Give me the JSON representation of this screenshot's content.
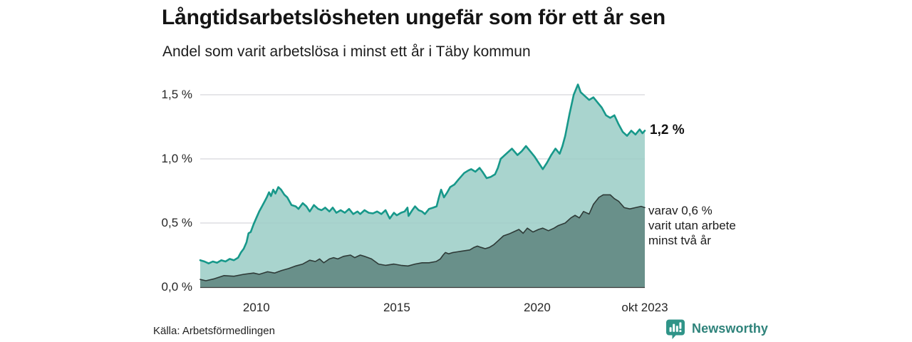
{
  "header": {
    "title": "Långtidsarbetslösheten ungefär som för ett år sen",
    "subtitle": "Andel som varit arbetslösa i minst ett år i Täby kommun"
  },
  "annotations": {
    "end_value_primary": "1,2 %",
    "secondary_lines": [
      "varav 0,6 %",
      "varit utan arbete",
      "minst två år"
    ]
  },
  "footer": {
    "source": "Källa: Arbetsförmedlingen",
    "brand": "Newsworthy"
  },
  "colors": {
    "primary_line": "#17988a",
    "primary_fill": "rgba(154,205,198,0.85)",
    "secondary_line": "#2e3a37",
    "secondary_fill": "rgba(100,138,132,0.92)",
    "gridline": "#d7d7dc",
    "axis_line": "#3c3c3c",
    "brand_teal": "#2f9488"
  },
  "chart_data": {
    "type": "area",
    "title": "Långtidsarbetslösheten ungefär som för ett år sen",
    "subtitle": "Andel som varit arbetslösa i minst ett år i Täby kommun",
    "unit": "percent",
    "grid": true,
    "x_axis": {
      "range": [
        2008.0,
        2023.833
      ],
      "ticks": [
        {
          "label": "2010",
          "t": 2010
        },
        {
          "label": "2015",
          "t": 2015
        },
        {
          "label": "2020",
          "t": 2020
        },
        {
          "label": "okt 2023",
          "t": 2023.833
        }
      ]
    },
    "y_axis": {
      "range": [
        0,
        1.6
      ],
      "ticks": [
        {
          "label": "0,0 %",
          "v": 0.0
        },
        {
          "label": "0,5 %",
          "v": 0.5
        },
        {
          "label": "1,0 %",
          "v": 1.0
        },
        {
          "label": "1,5 %",
          "v": 1.5
        }
      ]
    },
    "series": [
      {
        "name": "Andel arbetslösa minst ett år",
        "end_value": "1,2 %",
        "points": [
          [
            2008.0,
            0.21
          ],
          [
            2008.15,
            0.2
          ],
          [
            2008.3,
            0.185
          ],
          [
            2008.45,
            0.2
          ],
          [
            2008.6,
            0.19
          ],
          [
            2008.75,
            0.21
          ],
          [
            2008.9,
            0.2
          ],
          [
            2009.05,
            0.22
          ],
          [
            2009.2,
            0.21
          ],
          [
            2009.35,
            0.23
          ],
          [
            2009.45,
            0.27
          ],
          [
            2009.55,
            0.3
          ],
          [
            2009.65,
            0.35
          ],
          [
            2009.72,
            0.42
          ],
          [
            2009.8,
            0.43
          ],
          [
            2009.9,
            0.49
          ],
          [
            2010.0,
            0.54
          ],
          [
            2010.1,
            0.59
          ],
          [
            2010.2,
            0.63
          ],
          [
            2010.3,
            0.67
          ],
          [
            2010.37,
            0.7
          ],
          [
            2010.45,
            0.74
          ],
          [
            2010.52,
            0.71
          ],
          [
            2010.6,
            0.76
          ],
          [
            2010.68,
            0.73
          ],
          [
            2010.78,
            0.78
          ],
          [
            2010.88,
            0.76
          ],
          [
            2011.0,
            0.72
          ],
          [
            2011.1,
            0.7
          ],
          [
            2011.25,
            0.64
          ],
          [
            2011.4,
            0.63
          ],
          [
            2011.5,
            0.61
          ],
          [
            2011.65,
            0.655
          ],
          [
            2011.78,
            0.63
          ],
          [
            2011.9,
            0.59
          ],
          [
            2012.05,
            0.64
          ],
          [
            2012.2,
            0.61
          ],
          [
            2012.32,
            0.6
          ],
          [
            2012.45,
            0.62
          ],
          [
            2012.6,
            0.59
          ],
          [
            2012.72,
            0.62
          ],
          [
            2012.85,
            0.58
          ],
          [
            2013.0,
            0.6
          ],
          [
            2013.15,
            0.58
          ],
          [
            2013.3,
            0.61
          ],
          [
            2013.45,
            0.57
          ],
          [
            2013.6,
            0.59
          ],
          [
            2013.7,
            0.57
          ],
          [
            2013.85,
            0.6
          ],
          [
            2014.0,
            0.58
          ],
          [
            2014.15,
            0.575
          ],
          [
            2014.3,
            0.59
          ],
          [
            2014.45,
            0.57
          ],
          [
            2014.6,
            0.6
          ],
          [
            2014.75,
            0.535
          ],
          [
            2014.9,
            0.58
          ],
          [
            2015.0,
            0.56
          ],
          [
            2015.15,
            0.58
          ],
          [
            2015.28,
            0.59
          ],
          [
            2015.38,
            0.62
          ],
          [
            2015.42,
            0.555
          ],
          [
            2015.55,
            0.6
          ],
          [
            2015.65,
            0.63
          ],
          [
            2015.78,
            0.6
          ],
          [
            2015.9,
            0.59
          ],
          [
            2016.0,
            0.57
          ],
          [
            2016.15,
            0.61
          ],
          [
            2016.3,
            0.62
          ],
          [
            2016.42,
            0.63
          ],
          [
            2016.5,
            0.7
          ],
          [
            2016.58,
            0.76
          ],
          [
            2016.68,
            0.7
          ],
          [
            2016.8,
            0.74
          ],
          [
            2016.9,
            0.78
          ],
          [
            2017.05,
            0.8
          ],
          [
            2017.2,
            0.84
          ],
          [
            2017.4,
            0.89
          ],
          [
            2017.55,
            0.91
          ],
          [
            2017.65,
            0.92
          ],
          [
            2017.8,
            0.9
          ],
          [
            2017.95,
            0.93
          ],
          [
            2018.05,
            0.9
          ],
          [
            2018.2,
            0.85
          ],
          [
            2018.35,
            0.86
          ],
          [
            2018.5,
            0.88
          ],
          [
            2018.6,
            0.93
          ],
          [
            2018.7,
            1.0
          ],
          [
            2018.85,
            1.03
          ],
          [
            2019.0,
            1.06
          ],
          [
            2019.1,
            1.08
          ],
          [
            2019.3,
            1.03
          ],
          [
            2019.45,
            1.06
          ],
          [
            2019.6,
            1.1
          ],
          [
            2019.75,
            1.06
          ],
          [
            2019.9,
            1.02
          ],
          [
            2020.05,
            0.97
          ],
          [
            2020.2,
            0.92
          ],
          [
            2020.35,
            0.97
          ],
          [
            2020.5,
            1.03
          ],
          [
            2020.65,
            1.08
          ],
          [
            2020.8,
            1.04
          ],
          [
            2020.9,
            1.1
          ],
          [
            2021.0,
            1.18
          ],
          [
            2021.15,
            1.35
          ],
          [
            2021.3,
            1.5
          ],
          [
            2021.45,
            1.58
          ],
          [
            2021.55,
            1.52
          ],
          [
            2021.7,
            1.49
          ],
          [
            2021.85,
            1.46
          ],
          [
            2022.0,
            1.48
          ],
          [
            2022.15,
            1.44
          ],
          [
            2022.3,
            1.4
          ],
          [
            2022.45,
            1.34
          ],
          [
            2022.6,
            1.32
          ],
          [
            2022.75,
            1.34
          ],
          [
            2022.9,
            1.27
          ],
          [
            2023.05,
            1.21
          ],
          [
            2023.2,
            1.18
          ],
          [
            2023.35,
            1.22
          ],
          [
            2023.5,
            1.19
          ],
          [
            2023.65,
            1.23
          ],
          [
            2023.75,
            1.2
          ],
          [
            2023.833,
            1.22
          ]
        ]
      },
      {
        "name": "varav utan arbete minst två år",
        "end_value": "0,6 %",
        "points": [
          [
            2008.0,
            0.06
          ],
          [
            2008.2,
            0.05
          ],
          [
            2008.5,
            0.065
          ],
          [
            2008.85,
            0.09
          ],
          [
            2009.2,
            0.085
          ],
          [
            2009.55,
            0.1
          ],
          [
            2009.9,
            0.11
          ],
          [
            2010.1,
            0.1
          ],
          [
            2010.4,
            0.12
          ],
          [
            2010.65,
            0.11
          ],
          [
            2010.9,
            0.13
          ],
          [
            2011.15,
            0.145
          ],
          [
            2011.4,
            0.165
          ],
          [
            2011.65,
            0.18
          ],
          [
            2011.9,
            0.21
          ],
          [
            2012.1,
            0.2
          ],
          [
            2012.25,
            0.22
          ],
          [
            2012.4,
            0.19
          ],
          [
            2012.6,
            0.22
          ],
          [
            2012.75,
            0.23
          ],
          [
            2012.9,
            0.22
          ],
          [
            2013.1,
            0.24
          ],
          [
            2013.35,
            0.25
          ],
          [
            2013.5,
            0.23
          ],
          [
            2013.7,
            0.25
          ],
          [
            2013.85,
            0.24
          ],
          [
            2014.1,
            0.22
          ],
          [
            2014.35,
            0.18
          ],
          [
            2014.6,
            0.17
          ],
          [
            2014.9,
            0.18
          ],
          [
            2015.15,
            0.17
          ],
          [
            2015.4,
            0.165
          ],
          [
            2015.65,
            0.18
          ],
          [
            2015.9,
            0.19
          ],
          [
            2016.15,
            0.19
          ],
          [
            2016.4,
            0.2
          ],
          [
            2016.55,
            0.22
          ],
          [
            2016.65,
            0.25
          ],
          [
            2016.73,
            0.27
          ],
          [
            2016.85,
            0.26
          ],
          [
            2017.0,
            0.27
          ],
          [
            2017.15,
            0.275
          ],
          [
            2017.3,
            0.28
          ],
          [
            2017.45,
            0.285
          ],
          [
            2017.6,
            0.29
          ],
          [
            2017.75,
            0.31
          ],
          [
            2017.87,
            0.32
          ],
          [
            2018.0,
            0.31
          ],
          [
            2018.15,
            0.3
          ],
          [
            2018.3,
            0.31
          ],
          [
            2018.45,
            0.33
          ],
          [
            2018.6,
            0.36
          ],
          [
            2018.8,
            0.4
          ],
          [
            2019.0,
            0.415
          ],
          [
            2019.15,
            0.43
          ],
          [
            2019.35,
            0.45
          ],
          [
            2019.5,
            0.42
          ],
          [
            2019.65,
            0.46
          ],
          [
            2019.85,
            0.43
          ],
          [
            2020.05,
            0.45
          ],
          [
            2020.2,
            0.46
          ],
          [
            2020.4,
            0.44
          ],
          [
            2020.6,
            0.46
          ],
          [
            2020.75,
            0.48
          ],
          [
            2021.0,
            0.5
          ],
          [
            2021.2,
            0.54
          ],
          [
            2021.35,
            0.56
          ],
          [
            2021.5,
            0.54
          ],
          [
            2021.65,
            0.59
          ],
          [
            2021.85,
            0.57
          ],
          [
            2022.0,
            0.645
          ],
          [
            2022.2,
            0.7
          ],
          [
            2022.35,
            0.72
          ],
          [
            2022.6,
            0.72
          ],
          [
            2022.75,
            0.69
          ],
          [
            2022.9,
            0.67
          ],
          [
            2023.1,
            0.62
          ],
          [
            2023.3,
            0.61
          ],
          [
            2023.5,
            0.62
          ],
          [
            2023.7,
            0.63
          ],
          [
            2023.833,
            0.62
          ]
        ]
      }
    ]
  }
}
